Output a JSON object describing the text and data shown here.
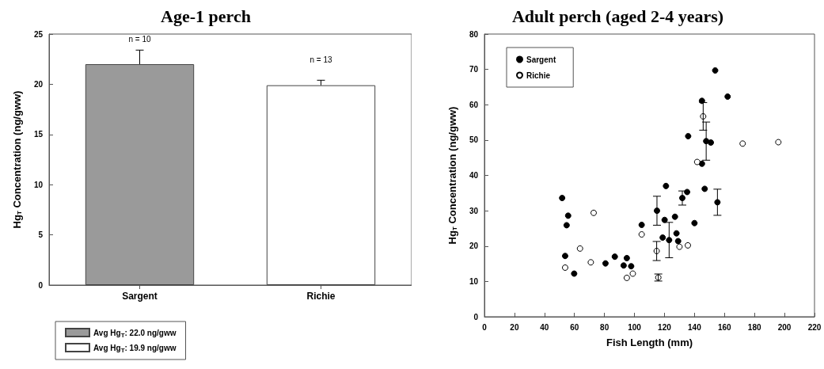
{
  "chart_data": [
    {
      "type": "bar",
      "title": "Age-1 perch",
      "ylabel": "Hg$_{T}$ Concentration (ng/gww)",
      "categories": [
        "Sargent",
        "Richie"
      ],
      "series": [
        {
          "name": "Avg Hg$_{T}$: 22.0 ng/gww",
          "color": "#9a9a9a",
          "values": [
            22.0,
            null
          ],
          "errors": [
            [
              22.0,
              23.4
            ],
            null
          ]
        },
        {
          "name": "Avg Hg$_{T}$: 19.9 ng/gww",
          "color": "#ffffff",
          "values": [
            null,
            19.9
          ],
          "errors": [
            null,
            [
              19.9,
              20.4
            ]
          ]
        }
      ],
      "ylim": [
        0,
        25
      ],
      "yticks": [
        0,
        5,
        10,
        15,
        20,
        25
      ],
      "legend": "bottom left",
      "grid": false,
      "annotations": [
        "n = 10",
        "n = 13"
      ]
    },
    {
      "type": "scatter",
      "title": "Adult perch (aged 2-4 years)",
      "xlabel": "Fish Length (mm)",
      "ylabel": "Hg$_{T}$ Concentration (ng/gww)",
      "marker": "circle",
      "series": [
        {
          "name": "Sargent",
          "color": "#000000",
          "x": [
            51.8,
            55.8,
            54.8,
            53.8,
            59.8,
            80.7,
            86.9,
            92.8,
            94.9,
            97.8,
            104.8,
            115.0,
            121.0,
            120.1,
            118.8,
            123.1,
            127.0,
            128.0,
            129.1,
            131.9,
            135.1,
            135.8,
            140.0,
            145.0,
            145.0,
            146.8,
            147.8,
            150.9,
            153.8,
            155.3,
            162.1
          ],
          "values": [
            33.6,
            28.6,
            25.9,
            17.2,
            12.2,
            15.1,
            17.0,
            14.5,
            16.6,
            14.3,
            26.0,
            30.0,
            37.0,
            27.4,
            22.4,
            21.7,
            28.3,
            23.6,
            21.4,
            33.6,
            35.3,
            51.1,
            26.5,
            61.1,
            43.3,
            36.2,
            49.7,
            49.3,
            69.7,
            32.4,
            62.3
          ],
          "errors": [
            null,
            null,
            null,
            null,
            null,
            null,
            null,
            null,
            null,
            null,
            null,
            4.1,
            null,
            null,
            null,
            5.0,
            null,
            null,
            null,
            2.0,
            null,
            null,
            null,
            null,
            null,
            null,
            5.4,
            null,
            null,
            3.7,
            null
          ]
        },
        {
          "name": "Richie",
          "color": "#ffffff",
          "x": [
            53.8,
            63.7,
            70.9,
            72.8,
            94.9,
            98.9,
            104.8,
            114.8,
            115.9,
            130.0,
            135.6,
            141.8,
            145.8,
            172.1,
            195.9
          ],
          "values": [
            13.9,
            19.3,
            15.4,
            29.4,
            11.0,
            12.2,
            23.3,
            18.6,
            11.1,
            19.8,
            20.2,
            43.8,
            56.7,
            49.0,
            49.4
          ],
          "errors": [
            null,
            null,
            null,
            null,
            null,
            null,
            null,
            2.7,
            1.0,
            null,
            null,
            null,
            3.9,
            null,
            null
          ]
        }
      ],
      "xlim": [
        0,
        220
      ],
      "xticks": [
        0,
        20,
        40,
        60,
        80,
        100,
        120,
        140,
        160,
        180,
        200,
        220
      ],
      "ylim": [
        0,
        80
      ],
      "yticks": [
        0,
        10,
        20,
        30,
        40,
        50,
        60,
        70,
        80
      ],
      "legend": "top left",
      "grid": false
    }
  ]
}
